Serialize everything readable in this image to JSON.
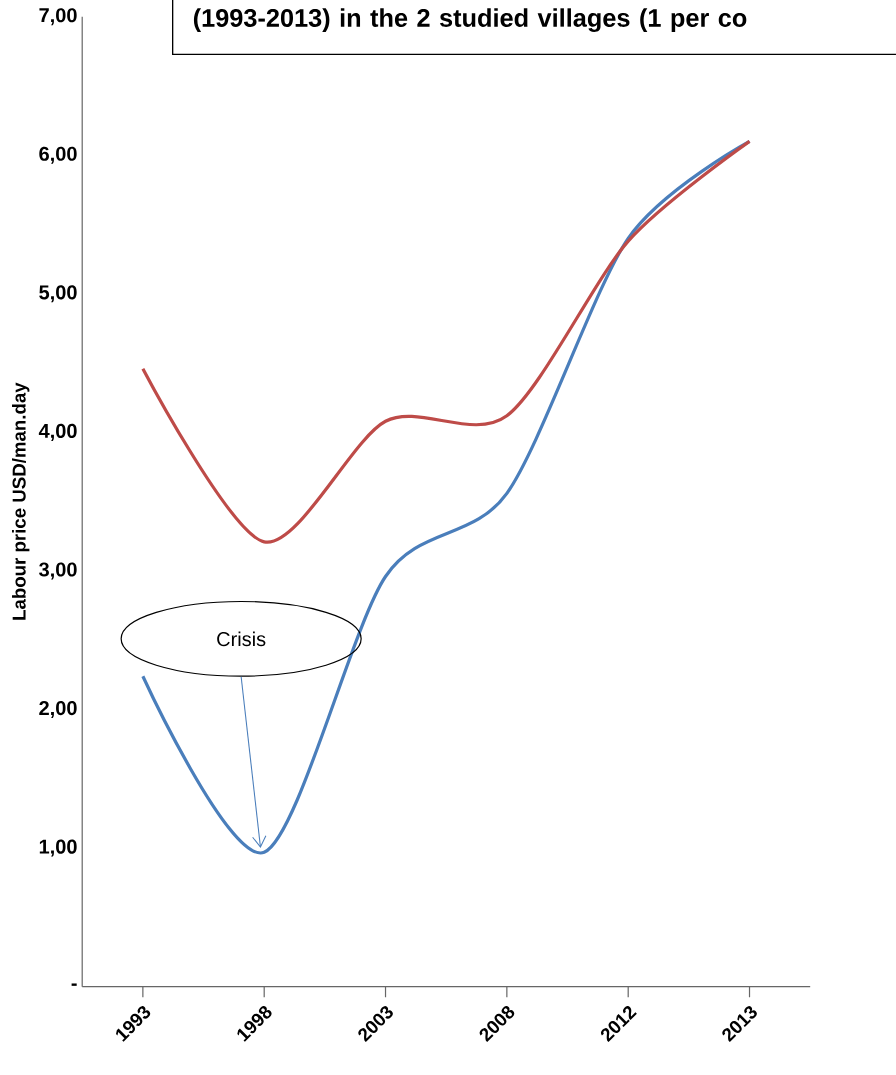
{
  "chart_data": {
    "type": "line",
    "title": "(1993-2013) in the 2 studied villages (1 per co",
    "ylabel": "Labour price USD/man.day",
    "categories": [
      "1993",
      "1998",
      "2003",
      "2008",
      "2012",
      "2013"
    ],
    "series": [
      {
        "color": "#4a7ebb",
        "values": [
          2.24,
          0.97,
          2.96,
          3.56,
          5.4,
          6.1
        ]
      },
      {
        "color": "#be4b48",
        "values": [
          4.46,
          3.21,
          4.08,
          4.12,
          5.38,
          6.1
        ]
      }
    ],
    "ylim": [
      0,
      7
    ],
    "yticks": [
      {
        "value": 0,
        "label": "-"
      },
      {
        "value": 1,
        "label": "1,00"
      },
      {
        "value": 2,
        "label": "2,00"
      },
      {
        "value": 3,
        "label": "3,00"
      },
      {
        "value": 4,
        "label": "4,00"
      },
      {
        "value": 5,
        "label": "5,00"
      },
      {
        "value": 6,
        "label": "6,00"
      },
      {
        "value": 7,
        "label": "7,00"
      }
    ],
    "grid": false,
    "marker": "none",
    "line_style": "solid",
    "annotations": [
      "Crisis"
    ]
  }
}
